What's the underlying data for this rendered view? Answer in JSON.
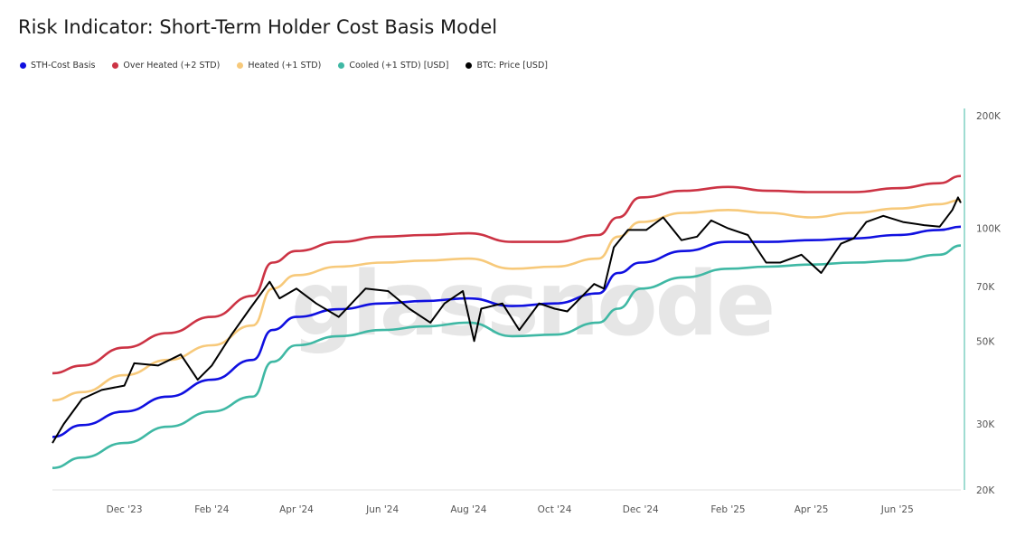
{
  "title": "Risk Indicator: Short-Term Holder Cost Basis Model",
  "watermark": "glassnode",
  "chart_data": {
    "type": "line",
    "title": "Risk Indicator: Short-Term Holder Cost Basis Model",
    "xlabel": "",
    "ylabel": "",
    "y_scale": "log",
    "y_axis_position": "right",
    "ylim": [
      20000,
      200000
    ],
    "xlim": [
      "2023-10-11",
      "2025-07-16"
    ],
    "grid": false,
    "legend_position": "top-left",
    "y_ticks": [
      {
        "value": 200000,
        "label": "200K"
      },
      {
        "value": 100000,
        "label": "100K"
      },
      {
        "value": 70000,
        "label": "70K"
      },
      {
        "value": 50000,
        "label": "50K"
      },
      {
        "value": 30000,
        "label": "30K"
      },
      {
        "value": 20000,
        "label": "20K"
      }
    ],
    "x_ticks": [
      {
        "date": "2023-12-01",
        "label": "Dec '23"
      },
      {
        "date": "2024-02-01",
        "label": "Feb '24"
      },
      {
        "date": "2024-04-01",
        "label": "Apr '24"
      },
      {
        "date": "2024-06-01",
        "label": "Jun '24"
      },
      {
        "date": "2024-08-01",
        "label": "Aug '24"
      },
      {
        "date": "2024-10-01",
        "label": "Oct '24"
      },
      {
        "date": "2024-12-01",
        "label": "Dec '24"
      },
      {
        "date": "2025-02-01",
        "label": "Feb '25"
      },
      {
        "date": "2025-04-01",
        "label": "Apr '25"
      },
      {
        "date": "2025-06-01",
        "label": "Jun '25"
      }
    ],
    "band_dates": [
      "2023-10-11",
      "2023-11-01",
      "2023-12-01",
      "2024-01-01",
      "2024-02-01",
      "2024-03-01",
      "2024-03-15",
      "2024-04-01",
      "2024-05-01",
      "2024-06-01",
      "2024-07-01",
      "2024-08-01",
      "2024-09-01",
      "2024-10-01",
      "2024-11-01",
      "2024-11-15",
      "2024-12-01",
      "2025-01-01",
      "2025-02-01",
      "2025-03-01",
      "2025-04-01",
      "2025-05-01",
      "2025-06-01",
      "2025-07-01",
      "2025-07-16"
    ],
    "series": [
      {
        "name": "STH-Cost Basis",
        "color": "#1010e0",
        "values": [
          27700,
          29800,
          32400,
          35500,
          39400,
          44500,
          53500,
          58000,
          60800,
          63000,
          64000,
          65000,
          62000,
          63000,
          67000,
          76000,
          81000,
          87000,
          92000,
          92000,
          93000,
          94000,
          96000,
          99000,
          101000
        ]
      },
      {
        "name": "Over Heated (+2 STD)",
        "color": "#cc3344",
        "values": [
          41000,
          43000,
          48000,
          52500,
          58000,
          66000,
          81000,
          87000,
          92000,
          95000,
          96000,
          97000,
          92000,
          92000,
          96000,
          107000,
          121000,
          126000,
          129000,
          126000,
          125000,
          125000,
          128000,
          132000,
          138000
        ]
      },
      {
        "name": "Heated (+1 STD)",
        "color": "#f7c97a",
        "values": [
          34700,
          36500,
          40500,
          44500,
          48700,
          55000,
          69000,
          75000,
          79000,
          81000,
          82000,
          83000,
          78000,
          79000,
          83000,
          95000,
          104000,
          110000,
          112000,
          110000,
          107000,
          110000,
          113000,
          116000,
          119000
        ]
      },
      {
        "name": "Cooled (+1 STD) [USD]",
        "color": "#3fb8a4",
        "values": [
          22900,
          24400,
          26700,
          29500,
          32400,
          35500,
          44000,
          48700,
          51500,
          53500,
          54700,
          56000,
          51500,
          52000,
          56000,
          61000,
          69000,
          74000,
          78000,
          79000,
          80000,
          81000,
          82000,
          85000,
          90000
        ]
      },
      {
        "name": "BTC: Price [USD]",
        "color": "#000000",
        "dates": [
          "2023-10-11",
          "2023-10-19",
          "2023-11-01",
          "2023-11-15",
          "2023-12-01",
          "2023-12-08",
          "2023-12-25",
          "2024-01-10",
          "2024-01-22",
          "2024-02-01",
          "2024-02-15",
          "2024-02-28",
          "2024-03-13",
          "2024-03-20",
          "2024-04-01",
          "2024-04-15",
          "2024-05-01",
          "2024-05-20",
          "2024-06-05",
          "2024-06-20",
          "2024-07-05",
          "2024-07-15",
          "2024-07-28",
          "2024-08-05",
          "2024-08-10",
          "2024-08-25",
          "2024-09-06",
          "2024-09-20",
          "2024-10-01",
          "2024-10-10",
          "2024-10-29",
          "2024-11-05",
          "2024-11-12",
          "2024-11-22",
          "2024-12-05",
          "2024-12-17",
          "2024-12-30",
          "2025-01-10",
          "2025-01-20",
          "2025-02-01",
          "2025-02-15",
          "2025-02-28",
          "2025-03-10",
          "2025-03-25",
          "2025-04-08",
          "2025-04-22",
          "2025-05-01",
          "2025-05-10",
          "2025-05-22",
          "2025-06-05",
          "2025-06-20",
          "2025-07-01",
          "2025-07-10",
          "2025-07-14",
          "2025-07-16"
        ],
        "values": [
          26700,
          30000,
          35000,
          37000,
          38000,
          43600,
          43000,
          46000,
          39400,
          43000,
          52000,
          61000,
          72000,
          65000,
          69000,
          63000,
          58000,
          69000,
          68000,
          61000,
          56000,
          63000,
          68000,
          50000,
          61000,
          63000,
          53500,
          63000,
          61000,
          60000,
          71000,
          69000,
          89000,
          99000,
          99000,
          107000,
          93000,
          95000,
          105000,
          100000,
          96000,
          81000,
          81000,
          85000,
          76000,
          91000,
          94000,
          104000,
          108000,
          104000,
          102000,
          101000,
          112000,
          121000,
          117000
        ]
      }
    ]
  }
}
